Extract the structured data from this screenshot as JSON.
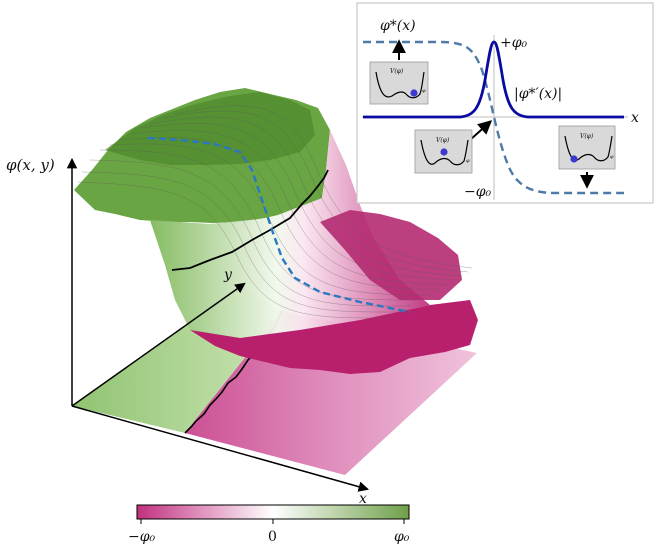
{
  "axes": {
    "z_label": "φ(x, y)",
    "y_label": "y",
    "x_label": "x"
  },
  "colorbar": {
    "ticks": [
      "−φ₀",
      "0",
      "φ₀"
    ],
    "color_negative": "#c2317f",
    "color_zero": "#ffffff",
    "color_positive": "#6fa048"
  },
  "inset": {
    "profile_label": "φ*(x)",
    "plus_label": "+φ₀",
    "minus_label": "−φ₀",
    "derivative_label": "|φ*′(x)|",
    "axis_label": "x",
    "profile_color": "#4f7aa6",
    "derivative_color": "#0a0aa0",
    "potential_label": "V(φ)",
    "potential_axis": "φ"
  },
  "surface": {
    "green_color": "#5f9a3a",
    "magenta_color": "#b8206e",
    "kink_line_color": "#2a78c0"
  }
}
